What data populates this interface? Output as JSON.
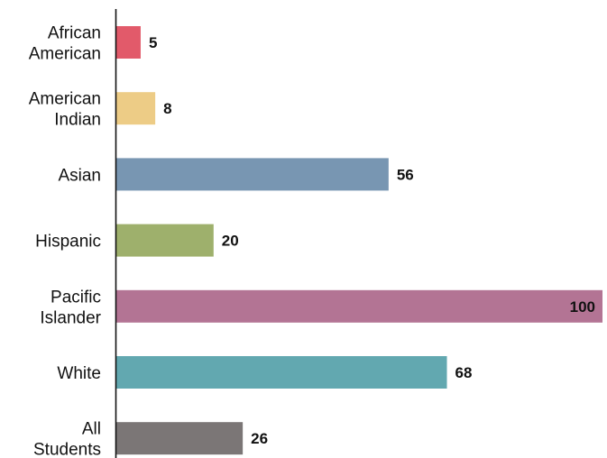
{
  "chart_data": {
    "type": "bar",
    "orientation": "horizontal",
    "categories": [
      [
        "African",
        "American"
      ],
      [
        "American",
        "Indian"
      ],
      [
        "Asian"
      ],
      [
        "Hispanic"
      ],
      [
        "Pacific",
        "Islander"
      ],
      [
        "White"
      ],
      [
        "All",
        "Students"
      ]
    ],
    "values": [
      5,
      8,
      56,
      20,
      100,
      68,
      26
    ],
    "colors": [
      "#e25a6a",
      "#edcc86",
      "#7896b2",
      "#9eb06c",
      "#b37494",
      "#62a8b0",
      "#7b7676"
    ],
    "xlim": [
      0,
      100
    ],
    "grid": false,
    "legend": "none",
    "title": "",
    "xlabel": "",
    "ylabel": ""
  }
}
